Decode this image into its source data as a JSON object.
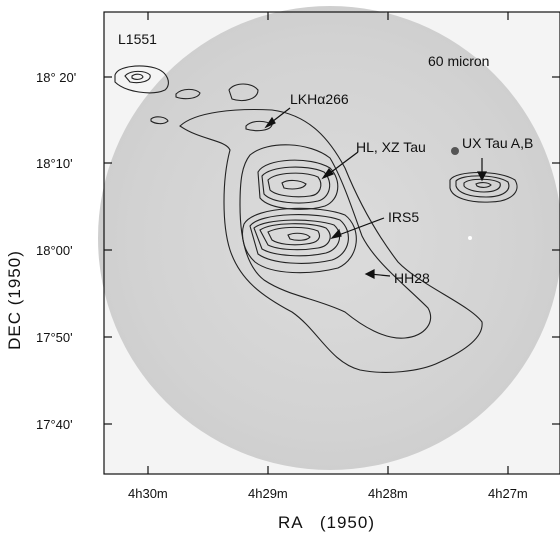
{
  "figure": {
    "field_label": "L1551",
    "band_label": "60 micron",
    "x_axis_title": "RA   (1950)",
    "y_axis_title": "DEC (1950)",
    "x_ticks": [
      "4h30m",
      "4h29m",
      "4h28m",
      "4h27m"
    ],
    "y_ticks": [
      "18° 20'",
      "18°10'",
      "18°00'",
      "17°50'",
      "17°40'"
    ],
    "annotations": {
      "lkha": "LKHα266",
      "hl_xz": "HL, XZ Tau",
      "ux": "UX Tau A,B",
      "irs5": "IRS5",
      "hh28": "HH28"
    }
  }
}
